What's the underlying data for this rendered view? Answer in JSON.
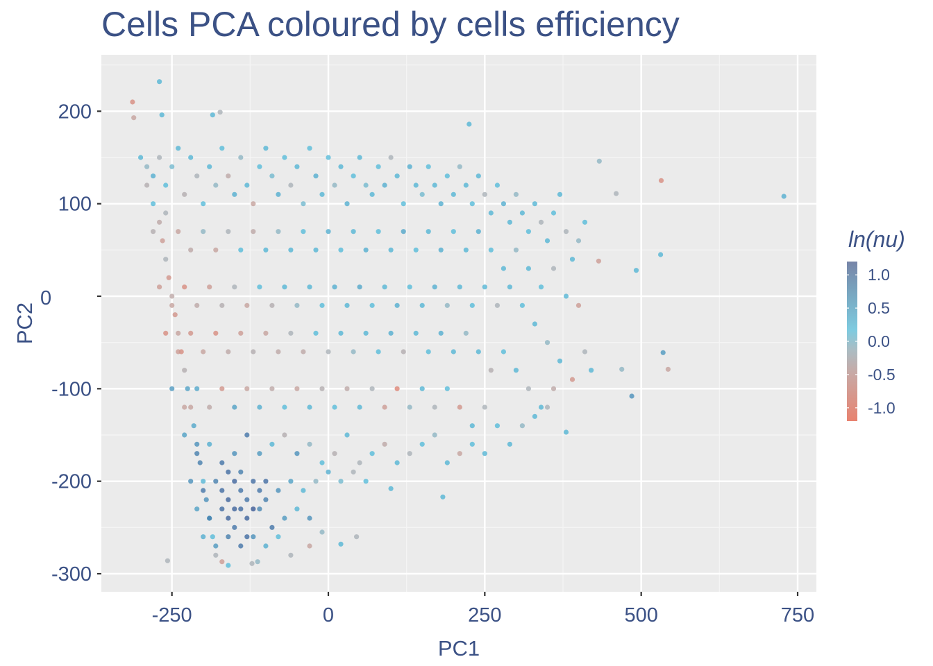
{
  "chart_data": {
    "type": "scatter",
    "title": "Cells PCA coloured by cells efficiency",
    "xlabel": "PC1",
    "ylabel": "PC2",
    "xlim": [
      -360,
      780
    ],
    "ylim": [
      -320,
      260
    ],
    "x_ticks": [
      -250,
      0,
      250,
      500,
      750
    ],
    "x_tick_labels": [
      "-250",
      "0",
      "250",
      "500",
      "750"
    ],
    "y_ticks": [
      200,
      100,
      0,
      -100,
      -200,
      -300
    ],
    "y_tick_labels": [
      "200",
      "100",
      "0",
      "-100",
      "-200",
      "-300"
    ],
    "grid": true,
    "legend": {
      "title": "ln(nu)",
      "placement": "right",
      "range": [
        -1.2,
        1.2
      ],
      "ticks": [
        1.0,
        0.5,
        0.0,
        -0.5,
        -1.0
      ],
      "tick_labels": [
        "1.0",
        "0.5",
        "0.0",
        "-0.5",
        "-1.0"
      ],
      "colors": {
        "low": "#e8725d",
        "mid_low": "#b3a8ac",
        "mid": "#53bad8",
        "high": "#3a5a94"
      }
    },
    "point_fields": [
      "PC1",
      "PC2",
      "ln_nu"
    ],
    "points": [
      [
        -270,
        232,
        0.1
      ],
      [
        -313,
        210,
        -0.9
      ],
      [
        -311,
        193,
        -0.6
      ],
      [
        -266,
        196,
        0.1
      ],
      [
        -185,
        196,
        0.1
      ],
      [
        -173,
        199,
        -0.3
      ],
      [
        225,
        186,
        0.1
      ],
      [
        532,
        125,
        -0.9
      ],
      [
        728,
        108,
        0.2
      ],
      [
        531,
        45,
        0.1
      ],
      [
        492,
        28,
        0.1
      ],
      [
        460,
        111,
        -0.3
      ],
      [
        433,
        146,
        -0.2
      ],
      [
        432,
        38,
        -0.7
      ],
      [
        535,
        -61,
        0.5
      ],
      [
        543,
        -79,
        -0.6
      ],
      [
        469,
        -79,
        -0.2
      ],
      [
        485,
        -108,
        0.6
      ],
      [
        380,
        -147,
        0.1
      ],
      [
        183,
        -217,
        0.1
      ],
      [
        -257,
        -286,
        -0.3
      ],
      [
        -170,
        -287,
        -0.7
      ],
      [
        -160,
        -291,
        0.0
      ],
      [
        -122,
        -289,
        -0.3
      ],
      [
        -113,
        -287,
        -0.2
      ],
      [
        -30,
        -270,
        -0.6
      ],
      [
        45,
        -260,
        -0.3
      ],
      [
        20,
        -268,
        0.1
      ],
      [
        -10,
        -255,
        -0.2
      ],
      [
        100,
        -208,
        0.1
      ],
      [
        -300,
        150,
        0.1
      ],
      [
        -290,
        120,
        -0.4
      ],
      [
        -280,
        100,
        0.0
      ],
      [
        -270,
        80,
        -0.5
      ],
      [
        -265,
        60,
        -0.7
      ],
      [
        -260,
        40,
        -0.3
      ],
      [
        -255,
        20,
        -0.8
      ],
      [
        -250,
        0,
        -0.5
      ],
      [
        -245,
        -20,
        -0.8
      ],
      [
        -240,
        -40,
        -0.6
      ],
      [
        -235,
        -60,
        -0.9
      ],
      [
        -230,
        -80,
        -0.4
      ],
      [
        -225,
        -100,
        0.4
      ],
      [
        -220,
        -120,
        -0.6
      ],
      [
        -215,
        -140,
        0.3
      ],
      [
        -210,
        -160,
        0.6
      ],
      [
        -205,
        -180,
        0.8
      ],
      [
        -200,
        -200,
        0.1
      ],
      [
        -195,
        -220,
        0.6
      ],
      [
        -190,
        -240,
        0.2
      ],
      [
        -185,
        -260,
        0.0
      ],
      [
        -180,
        -280,
        -0.3
      ],
      [
        -290,
        140,
        -0.2
      ],
      [
        -280,
        130,
        0.2
      ],
      [
        -270,
        150,
        -0.3
      ],
      [
        -260,
        120,
        0.0
      ],
      [
        -250,
        140,
        -0.1
      ],
      [
        -240,
        160,
        0.1
      ],
      [
        -230,
        110,
        -0.4
      ],
      [
        -220,
        150,
        0.1
      ],
      [
        -210,
        130,
        -0.3
      ],
      [
        -200,
        100,
        0.0
      ],
      [
        -190,
        140,
        0.1
      ],
      [
        -180,
        120,
        -0.2
      ],
      [
        -170,
        160,
        0.0
      ],
      [
        -160,
        130,
        -0.5
      ],
      [
        -150,
        110,
        0.2
      ],
      [
        -140,
        150,
        -0.2
      ],
      [
        -130,
        120,
        0.1
      ],
      [
        -120,
        100,
        -0.6
      ],
      [
        -110,
        140,
        0.0
      ],
      [
        -100,
        160,
        0.1
      ],
      [
        -90,
        130,
        -0.1
      ],
      [
        -80,
        110,
        0.2
      ],
      [
        -70,
        150,
        0.0
      ],
      [
        -60,
        120,
        -0.3
      ],
      [
        -50,
        140,
        0.1
      ],
      [
        -40,
        100,
        -0.1
      ],
      [
        -30,
        160,
        0.0
      ],
      [
        -20,
        130,
        0.2
      ],
      [
        -10,
        110,
        0.1
      ],
      [
        0,
        150,
        0.0
      ],
      [
        10,
        120,
        -0.2
      ],
      [
        20,
        140,
        0.1
      ],
      [
        30,
        100,
        0.2
      ],
      [
        40,
        130,
        0.0
      ],
      [
        50,
        150,
        0.1
      ],
      [
        60,
        120,
        -0.1
      ],
      [
        70,
        110,
        0.1
      ],
      [
        80,
        140,
        0.0
      ],
      [
        90,
        120,
        0.2
      ],
      [
        100,
        150,
        -0.3
      ],
      [
        110,
        130,
        0.1
      ],
      [
        120,
        100,
        0.0
      ],
      [
        130,
        140,
        0.2
      ],
      [
        140,
        120,
        0.1
      ],
      [
        150,
        110,
        -0.1
      ],
      [
        160,
        140,
        0.0
      ],
      [
        170,
        120,
        0.1
      ],
      [
        180,
        100,
        0.2
      ],
      [
        190,
        130,
        0.0
      ],
      [
        200,
        110,
        0.1
      ],
      [
        210,
        140,
        -0.2
      ],
      [
        220,
        120,
        0.1
      ],
      [
        230,
        100,
        0.0
      ],
      [
        240,
        130,
        0.1
      ],
      [
        250,
        110,
        -0.3
      ],
      [
        260,
        90,
        0.1
      ],
      [
        270,
        120,
        0.0
      ],
      [
        280,
        100,
        0.2
      ],
      [
        290,
        80,
        0.1
      ],
      [
        300,
        110,
        -0.2
      ],
      [
        310,
        90,
        0.1
      ],
      [
        320,
        70,
        0.0
      ],
      [
        330,
        100,
        0.1
      ],
      [
        340,
        80,
        -0.3
      ],
      [
        350,
        60,
        0.1
      ],
      [
        360,
        90,
        0.0
      ],
      [
        370,
        110,
        0.1
      ],
      [
        380,
        70,
        -0.3
      ],
      [
        390,
        40,
        0.1
      ],
      [
        400,
        60,
        -0.2
      ],
      [
        410,
        80,
        0.0
      ],
      [
        -280,
        70,
        -0.4
      ],
      [
        -260,
        90,
        -0.3
      ],
      [
        -240,
        70,
        -0.6
      ],
      [
        -220,
        50,
        -0.5
      ],
      [
        -200,
        70,
        -0.2
      ],
      [
        -180,
        50,
        -0.6
      ],
      [
        -160,
        70,
        -0.3
      ],
      [
        -140,
        50,
        0.0
      ],
      [
        -120,
        70,
        -0.5
      ],
      [
        -100,
        50,
        0.1
      ],
      [
        -80,
        70,
        -0.2
      ],
      [
        -60,
        50,
        0.1
      ],
      [
        -40,
        70,
        0.0
      ],
      [
        -20,
        50,
        0.1
      ],
      [
        0,
        70,
        0.2
      ],
      [
        20,
        50,
        0.0
      ],
      [
        40,
        70,
        0.1
      ],
      [
        60,
        50,
        0.2
      ],
      [
        80,
        70,
        0.0
      ],
      [
        100,
        50,
        0.1
      ],
      [
        120,
        70,
        0.3
      ],
      [
        140,
        50,
        0.0
      ],
      [
        160,
        70,
        0.1
      ],
      [
        180,
        50,
        0.2
      ],
      [
        200,
        70,
        0.0
      ],
      [
        220,
        50,
        0.1
      ],
      [
        240,
        70,
        0.2
      ],
      [
        260,
        50,
        0.0
      ],
      [
        280,
        30,
        0.1
      ],
      [
        300,
        50,
        -0.2
      ],
      [
        320,
        30,
        0.1
      ],
      [
        340,
        10,
        0.0
      ],
      [
        360,
        30,
        -0.3
      ],
      [
        380,
        0,
        0.1
      ],
      [
        400,
        -10,
        -0.7
      ],
      [
        -270,
        10,
        -0.7
      ],
      [
        -250,
        -10,
        -0.6
      ],
      [
        -230,
        10,
        -0.9
      ],
      [
        -210,
        -10,
        -0.5
      ],
      [
        -190,
        10,
        -0.7
      ],
      [
        -170,
        -10,
        -0.4
      ],
      [
        -150,
        10,
        -0.3
      ],
      [
        -130,
        -10,
        -0.6
      ],
      [
        -110,
        10,
        0.0
      ],
      [
        -90,
        -10,
        -0.4
      ],
      [
        -70,
        10,
        0.1
      ],
      [
        -50,
        -10,
        -0.2
      ],
      [
        -30,
        10,
        0.1
      ],
      [
        -10,
        -10,
        0.0
      ],
      [
        10,
        10,
        0.2
      ],
      [
        30,
        -10,
        0.1
      ],
      [
        50,
        10,
        0.3
      ],
      [
        70,
        -10,
        0.0
      ],
      [
        90,
        10,
        0.1
      ],
      [
        110,
        -10,
        0.2
      ],
      [
        130,
        10,
        0.0
      ],
      [
        150,
        -10,
        0.1
      ],
      [
        170,
        10,
        0.2
      ],
      [
        190,
        -10,
        -0.2
      ],
      [
        210,
        10,
        0.1
      ],
      [
        230,
        -10,
        0.0
      ],
      [
        250,
        10,
        0.1
      ],
      [
        270,
        -10,
        -0.3
      ],
      [
        290,
        10,
        0.1
      ],
      [
        310,
        -10,
        0.0
      ],
      [
        330,
        -30,
        0.1
      ],
      [
        350,
        -50,
        -0.2
      ],
      [
        370,
        -70,
        0.1
      ],
      [
        390,
        -90,
        -0.8
      ],
      [
        410,
        -60,
        -0.3
      ],
      [
        420,
        -80,
        0.1
      ],
      [
        -260,
        -40,
        -0.9
      ],
      [
        -240,
        -60,
        -0.7
      ],
      [
        -220,
        -40,
        -0.8
      ],
      [
        -200,
        -60,
        -0.6
      ],
      [
        -180,
        -40,
        -0.9
      ],
      [
        -160,
        -60,
        -0.5
      ],
      [
        -140,
        -40,
        -0.7
      ],
      [
        -120,
        -60,
        -0.4
      ],
      [
        -100,
        -40,
        -0.6
      ],
      [
        -80,
        -60,
        -0.5
      ],
      [
        -60,
        -40,
        -0.3
      ],
      [
        -40,
        -60,
        -0.5
      ],
      [
        -20,
        -40,
        0.0
      ],
      [
        0,
        -60,
        -0.3
      ],
      [
        20,
        -40,
        0.1
      ],
      [
        40,
        -60,
        -0.2
      ],
      [
        60,
        -40,
        0.1
      ],
      [
        80,
        -60,
        0.0
      ],
      [
        100,
        -40,
        0.2
      ],
      [
        120,
        -60,
        -0.4
      ],
      [
        140,
        -40,
        0.1
      ],
      [
        160,
        -60,
        0.0
      ],
      [
        180,
        -40,
        0.2
      ],
      [
        200,
        -60,
        0.1
      ],
      [
        220,
        -40,
        -0.2
      ],
      [
        240,
        -60,
        0.1
      ],
      [
        260,
        -80,
        -0.4
      ],
      [
        280,
        -60,
        0.0
      ],
      [
        300,
        -80,
        0.1
      ],
      [
        320,
        -100,
        -0.3
      ],
      [
        340,
        -120,
        0.1
      ],
      [
        360,
        -100,
        -0.5
      ],
      [
        -250,
        -100,
        0.5
      ],
      [
        -230,
        -120,
        -0.6
      ],
      [
        -210,
        -100,
        0.3
      ],
      [
        -190,
        -120,
        -0.5
      ],
      [
        -170,
        -100,
        -0.8
      ],
      [
        -150,
        -120,
        0.4
      ],
      [
        -130,
        -100,
        -0.6
      ],
      [
        -110,
        -120,
        0.2
      ],
      [
        -90,
        -100,
        -0.5
      ],
      [
        -70,
        -120,
        0.0
      ],
      [
        -50,
        -100,
        -0.6
      ],
      [
        -30,
        -120,
        0.1
      ],
      [
        -10,
        -100,
        -0.4
      ],
      [
        10,
        -120,
        0.0
      ],
      [
        30,
        -100,
        -0.5
      ],
      [
        50,
        -120,
        0.1
      ],
      [
        70,
        -100,
        -0.3
      ],
      [
        90,
        -120,
        -0.7
      ],
      [
        110,
        -100,
        -1.0
      ],
      [
        130,
        -120,
        -0.2
      ],
      [
        150,
        -100,
        0.1
      ],
      [
        170,
        -120,
        -0.3
      ],
      [
        190,
        -100,
        0.0
      ],
      [
        210,
        -120,
        -0.8
      ],
      [
        230,
        -140,
        0.1
      ],
      [
        250,
        -120,
        -0.3
      ],
      [
        270,
        -140,
        0.0
      ],
      [
        290,
        -160,
        0.1
      ],
      [
        310,
        -140,
        -0.2
      ],
      [
        330,
        -130,
        0.1
      ],
      [
        350,
        -120,
        -0.3
      ],
      [
        -230,
        -150,
        0.4
      ],
      [
        -210,
        -170,
        0.8
      ],
      [
        -190,
        -160,
        0.2
      ],
      [
        -170,
        -180,
        0.9
      ],
      [
        -150,
        -170,
        0.6
      ],
      [
        -130,
        -150,
        0.9
      ],
      [
        -110,
        -170,
        0.5
      ],
      [
        -90,
        -160,
        0.1
      ],
      [
        -70,
        -150,
        -0.4
      ],
      [
        -50,
        -170,
        0.6
      ],
      [
        -30,
        -160,
        -0.2
      ],
      [
        -10,
        -180,
        0.0
      ],
      [
        10,
        -170,
        -0.4
      ],
      [
        30,
        -150,
        0.1
      ],
      [
        50,
        -180,
        -0.3
      ],
      [
        70,
        -170,
        0.0
      ],
      [
        90,
        -160,
        -0.5
      ],
      [
        110,
        -180,
        0.1
      ],
      [
        130,
        -170,
        -0.3
      ],
      [
        150,
        -160,
        0.0
      ],
      [
        170,
        -150,
        -0.2
      ],
      [
        190,
        -180,
        0.1
      ],
      [
        210,
        -170,
        -0.6
      ],
      [
        230,
        -160,
        0.0
      ],
      [
        250,
        -170,
        0.1
      ],
      [
        -220,
        -200,
        0.6
      ],
      [
        -200,
        -210,
        0.9
      ],
      [
        -180,
        -200,
        0.8
      ],
      [
        -160,
        -220,
        1.1
      ],
      [
        -140,
        -210,
        0.9
      ],
      [
        -120,
        -200,
        1.0
      ],
      [
        -100,
        -220,
        0.8
      ],
      [
        -80,
        -210,
        0.6
      ],
      [
        -60,
        -200,
        0.4
      ],
      [
        -40,
        -210,
        0.1
      ],
      [
        -20,
        -200,
        -0.2
      ],
      [
        0,
        -190,
        0.2
      ],
      [
        20,
        -200,
        -0.1
      ],
      [
        40,
        -190,
        -0.3
      ],
      [
        60,
        -200,
        0.0
      ],
      [
        -210,
        -230,
        0.4
      ],
      [
        -190,
        -240,
        0.8
      ],
      [
        -170,
        -230,
        1.0
      ],
      [
        -150,
        -250,
        0.9
      ],
      [
        -130,
        -240,
        1.1
      ],
      [
        -110,
        -230,
        0.7
      ],
      [
        -90,
        -250,
        0.9
      ],
      [
        -70,
        -240,
        0.5
      ],
      [
        -50,
        -230,
        0.1
      ],
      [
        -30,
        -240,
        0.6
      ],
      [
        -200,
        -260,
        0.2
      ],
      [
        -180,
        -270,
        0.5
      ],
      [
        -160,
        -260,
        0.8
      ],
      [
        -140,
        -270,
        0.9
      ],
      [
        -120,
        -260,
        0.6
      ],
      [
        -100,
        -270,
        0.2
      ],
      [
        -80,
        -260,
        0.0
      ],
      [
        -60,
        -280,
        -0.3
      ],
      [
        -160,
        -190,
        1.0
      ],
      [
        -150,
        -200,
        1.1
      ],
      [
        -140,
        -230,
        1.0
      ],
      [
        -130,
        -220,
        0.9
      ],
      [
        -120,
        -230,
        1.2
      ],
      [
        -110,
        -210,
        0.9
      ],
      [
        -170,
        -210,
        1.0
      ],
      [
        -150,
        -230,
        1.1
      ],
      [
        -140,
        -190,
        0.8
      ],
      [
        -100,
        -200,
        1.0
      ],
      [
        -130,
        -260,
        1.0
      ],
      [
        -160,
        -240,
        1.1
      ]
    ]
  }
}
